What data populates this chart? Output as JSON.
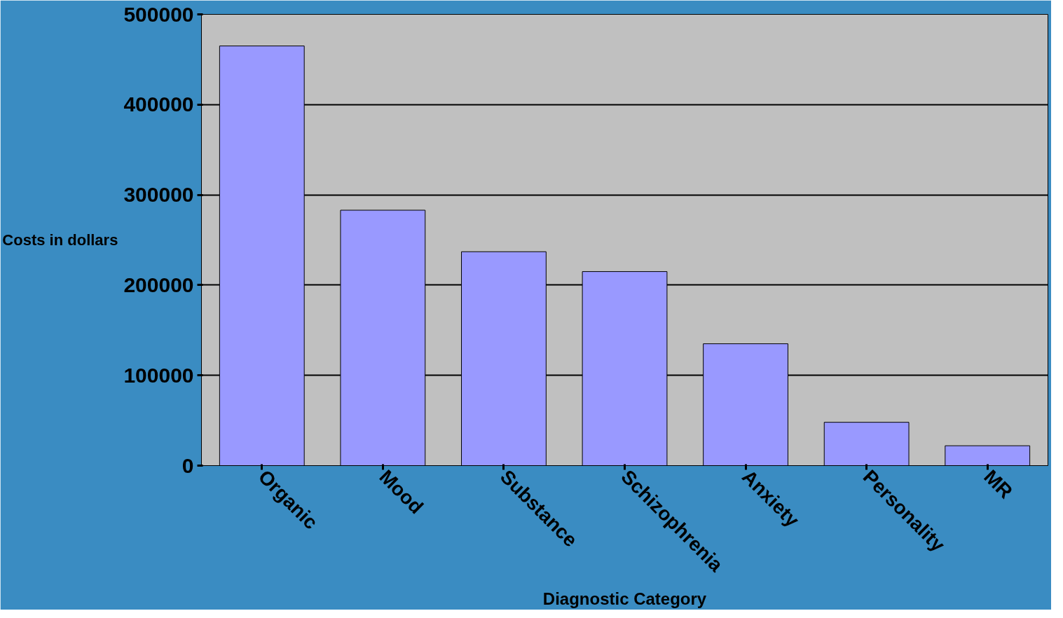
{
  "chart_data": {
    "type": "bar",
    "xlabel": "Diagnostic Category",
    "ylabel": "Costs in dollars",
    "categories": [
      "Organic",
      "Mood",
      "Substance",
      "Schizophrenia",
      "Anxiety",
      "Personality",
      "MR"
    ],
    "values": [
      465000,
      283000,
      237000,
      215000,
      135000,
      48000,
      22000
    ],
    "color": "#9999ff",
    "ylim": [
      0,
      500000
    ],
    "yticks": [
      0,
      100000,
      200000,
      300000,
      400000,
      500000
    ],
    "grid": "y"
  }
}
